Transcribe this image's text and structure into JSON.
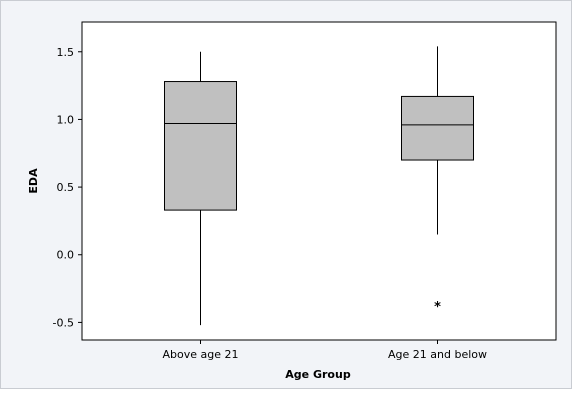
{
  "chart_data": {
    "type": "boxplot",
    "title": "",
    "xlabel": "Age Group",
    "ylabel": "EDA",
    "ylim": [
      -0.63,
      1.72
    ],
    "yticks": [
      -0.5,
      0.0,
      0.5,
      1.0,
      1.5
    ],
    "ytick_labels": [
      "-0.5",
      "0.0",
      "0.5",
      "1.0",
      "1.5"
    ],
    "categories": [
      "Above age 21",
      "Age 21 and below"
    ],
    "boxes": [
      {
        "category": "Above age 21",
        "whisker_low": -0.52,
        "q1": 0.33,
        "median": 0.97,
        "q3": 1.28,
        "whisker_high": 1.5,
        "outliers": []
      },
      {
        "category": "Age 21 and below",
        "whisker_low": 0.15,
        "q1": 0.7,
        "median": 0.96,
        "q3": 1.17,
        "whisker_high": 1.54,
        "outliers": [
          -0.37
        ]
      }
    ],
    "outlier_symbol": "*",
    "colors": {
      "box_fill": "#c0c0c0",
      "plot_background": "#ffffff",
      "figure_background": "#f2f4f8",
      "line": "#000000"
    },
    "grid": false,
    "legend": "none"
  }
}
